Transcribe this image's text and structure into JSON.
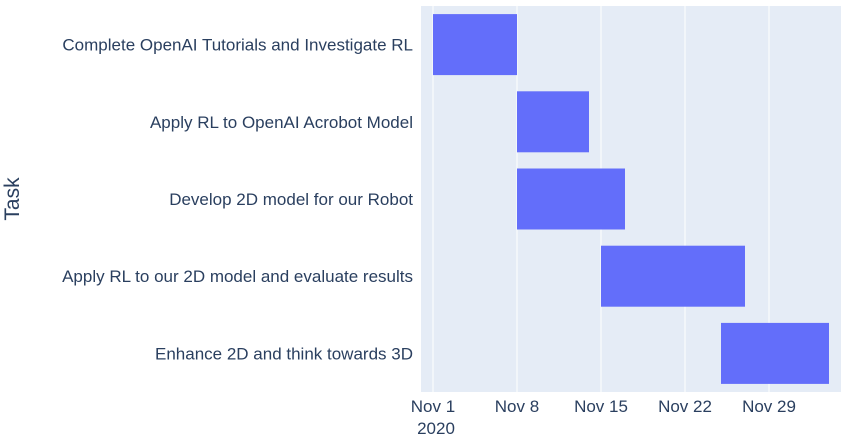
{
  "chart_data": {
    "type": "gantt",
    "title": "",
    "xlabel": "",
    "ylabel": "Task",
    "year_label": "2020",
    "xlim": [
      "2020-10-31",
      "2020-12-05"
    ],
    "x_ticks": [
      {
        "date": "2020-11-01",
        "label": "Nov 1"
      },
      {
        "date": "2020-11-08",
        "label": "Nov 8"
      },
      {
        "date": "2020-11-15",
        "label": "Nov 15"
      },
      {
        "date": "2020-11-22",
        "label": "Nov 22"
      },
      {
        "date": "2020-11-29",
        "label": "Nov 29"
      }
    ],
    "tasks": [
      {
        "name": "Complete OpenAI Tutorials and Investigate RL",
        "start": "2020-11-01",
        "end": "2020-11-08"
      },
      {
        "name": "Apply RL to OpenAI Acrobot Model",
        "start": "2020-11-08",
        "end": "2020-11-14"
      },
      {
        "name": "Develop 2D model for our Robot",
        "start": "2020-11-08",
        "end": "2020-11-17"
      },
      {
        "name": "Apply RL to our 2D model and evaluate results",
        "start": "2020-11-15",
        "end": "2020-11-27"
      },
      {
        "name": "Enhance 2D and think towards 3D",
        "start": "2020-11-25",
        "end": "2020-12-04"
      }
    ],
    "grid": true,
    "colors": {
      "bar": "#636efa",
      "plot_background": "#e5ecf6",
      "grid": "#ffffff",
      "text": "#2a3f5f"
    }
  }
}
